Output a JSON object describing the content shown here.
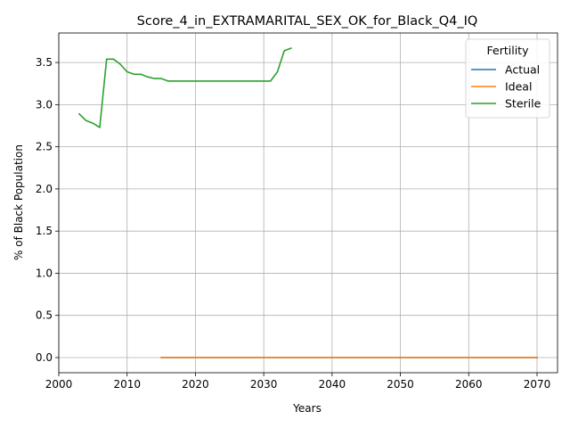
{
  "chart_data": {
    "type": "line",
    "title": "Score_4_in_EXTRAMARITAL_SEX_OK_for_Black_Q4_IQ",
    "xlabel": "Years",
    "ylabel": "% of Black Population",
    "xlim": [
      2000,
      2073
    ],
    "ylim": [
      -0.18,
      3.85
    ],
    "xticks": [
      2000,
      2010,
      2020,
      2030,
      2040,
      2050,
      2060,
      2070
    ],
    "xtick_labels": [
      "2000",
      "2010",
      "2020",
      "2030",
      "2040",
      "2050",
      "2060",
      "2070"
    ],
    "yticks": [
      0.0,
      0.5,
      1.0,
      1.5,
      2.0,
      2.5,
      3.0,
      3.5
    ],
    "ytick_labels": [
      "0.0",
      "0.5",
      "1.0",
      "1.5",
      "2.0",
      "2.5",
      "3.0",
      "3.5"
    ],
    "grid": true,
    "legend": {
      "title": "Fertility",
      "position": "upper right"
    },
    "series": [
      {
        "name": "Actual",
        "color": "#1f77b4",
        "x": [
          2015,
          2070
        ],
        "y": [
          0.0,
          0.0
        ]
      },
      {
        "name": "Ideal",
        "color": "#ff7f0e",
        "x": [
          2015,
          2016,
          2020,
          2025,
          2030,
          2035,
          2040,
          2045,
          2050,
          2055,
          2060,
          2065,
          2070
        ],
        "y": [
          0.0,
          0.0,
          0.0,
          0.0,
          0.0,
          0.0,
          0.0,
          0.0,
          0.0,
          0.0,
          0.0,
          0.0,
          0.0
        ]
      },
      {
        "name": "Sterile",
        "color": "#2ca02c",
        "x": [
          2003,
          2004,
          2005,
          2006,
          2007,
          2008,
          2009,
          2010,
          2011,
          2012,
          2013,
          2014,
          2015,
          2016,
          2017,
          2018,
          2019,
          2020,
          2021,
          2022,
          2023,
          2024,
          2025,
          2026,
          2027,
          2028,
          2029,
          2030,
          2031,
          2032,
          2033,
          2034
        ],
        "y": [
          2.89,
          2.81,
          2.78,
          2.73,
          3.54,
          3.54,
          3.48,
          3.39,
          3.36,
          3.36,
          3.33,
          3.31,
          3.31,
          3.28,
          3.28,
          3.28,
          3.28,
          3.28,
          3.28,
          3.28,
          3.28,
          3.28,
          3.28,
          3.28,
          3.28,
          3.28,
          3.28,
          3.28,
          3.28,
          3.39,
          3.64,
          3.67
        ]
      }
    ]
  }
}
